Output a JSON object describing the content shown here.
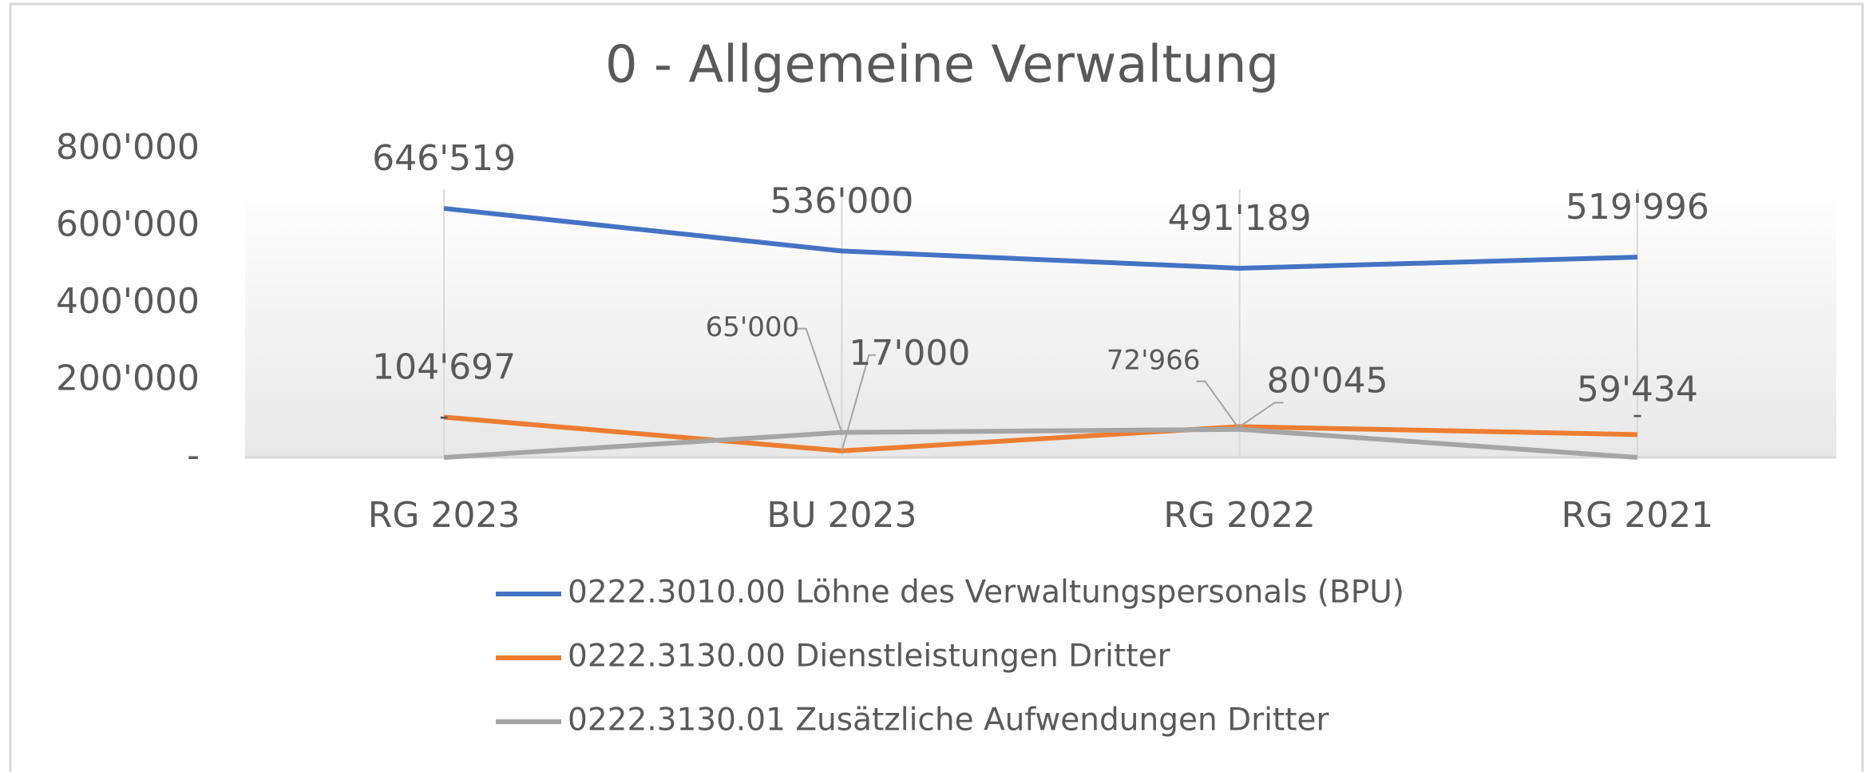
{
  "chart_data": {
    "type": "line",
    "title": "0 - Allgemeine Verwaltung",
    "categories": [
      "RG 2023",
      "BU 2023",
      "RG 2022",
      "RG 2021"
    ],
    "series": [
      {
        "name": "0222.3010.00 Löhne des Verwaltungspersonals (BPU)",
        "color": "#4472c4",
        "values": [
          646519,
          536000,
          491189,
          519996
        ],
        "value_labels": [
          "646'519",
          "536'000",
          "491'189",
          "519'996"
        ]
      },
      {
        "name": "0222.3130.00 Dienstleistungen Dritter",
        "color": "#ed7d31",
        "values": [
          104697,
          17000,
          80045,
          59434
        ],
        "value_labels": [
          "104'697",
          "17'000",
          "80'045",
          "59'434"
        ]
      },
      {
        "name": "0222.3130.01 Zusätzliche Aufwendungen Dritter",
        "color": "#a5a5a5",
        "values": [
          0,
          65000,
          72966,
          0
        ],
        "value_labels": [
          "-",
          "65'000",
          "72'966",
          "-"
        ]
      }
    ],
    "ylim": [
      0,
      800000
    ],
    "yticks": [
      {
        "value": 0,
        "label": "-"
      },
      {
        "value": 200000,
        "label": "200'000"
      },
      {
        "value": 400000,
        "label": "400'000"
      },
      {
        "value": 600000,
        "label": "600'000"
      },
      {
        "value": 800000,
        "label": "800'000"
      }
    ],
    "grid": false
  }
}
